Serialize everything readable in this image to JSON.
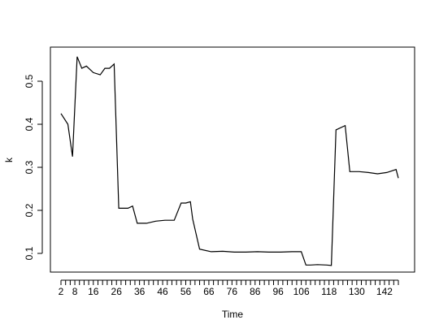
{
  "chart_data": {
    "type": "line",
    "title": "",
    "xlabel": "Time",
    "ylabel": "k",
    "xlim": [
      2,
      148
    ],
    "ylim": [
      0.055,
      0.575
    ],
    "x_ticks": [
      2,
      4,
      6,
      8,
      10,
      12,
      14,
      16,
      18,
      20,
      22,
      24,
      26,
      28,
      30,
      32,
      34,
      36,
      38,
      40,
      42,
      44,
      46,
      48,
      50,
      52,
      54,
      56,
      58,
      60,
      62,
      64,
      66,
      68,
      70,
      72,
      74,
      76,
      78,
      80,
      82,
      84,
      86,
      88,
      90,
      92,
      94,
      96,
      98,
      100,
      102,
      104,
      106,
      108,
      110,
      112,
      114,
      116,
      118,
      120,
      122,
      124,
      126,
      128,
      130,
      132,
      134,
      136,
      138,
      140,
      142,
      144,
      146,
      148
    ],
    "x_tick_labels": [
      {
        "x": 2,
        "label": "2"
      },
      {
        "x": 8,
        "label": "8"
      },
      {
        "x": 16,
        "label": "16"
      },
      {
        "x": 26,
        "label": "26"
      },
      {
        "x": 36,
        "label": "36"
      },
      {
        "x": 46,
        "label": "46"
      },
      {
        "x": 56,
        "label": "56"
      },
      {
        "x": 66,
        "label": "66"
      },
      {
        "x": 76,
        "label": "76"
      },
      {
        "x": 86,
        "label": "86"
      },
      {
        "x": 96,
        "label": "96"
      },
      {
        "x": 106,
        "label": "106"
      },
      {
        "x": 118,
        "label": "118"
      },
      {
        "x": 130,
        "label": "130"
      },
      {
        "x": 142,
        "label": "142"
      }
    ],
    "y_ticks": [
      {
        "value": 0.1,
        "label": "0.1"
      },
      {
        "value": 0.2,
        "label": "0.2"
      },
      {
        "value": 0.3,
        "label": "0.3"
      },
      {
        "value": 0.4,
        "label": "0.4"
      },
      {
        "value": 0.5,
        "label": "0.5"
      }
    ],
    "grid": false,
    "series": [
      {
        "x": [
          2,
          5,
          7,
          9,
          11,
          13,
          16,
          19,
          21,
          23,
          25,
          26,
          27,
          31,
          33,
          35,
          39,
          43,
          47,
          49,
          51,
          54,
          56,
          58,
          59,
          62,
          67,
          72,
          77,
          82,
          87,
          92,
          97,
          102,
          106,
          108,
          110,
          113,
          117,
          119,
          121,
          125,
          127,
          131,
          135,
          139,
          143,
          147,
          148
        ],
        "y": [
          0.425,
          0.4,
          0.325,
          0.557,
          0.53,
          0.535,
          0.52,
          0.515,
          0.53,
          0.53,
          0.54,
          0.375,
          0.205,
          0.205,
          0.21,
          0.17,
          0.17,
          0.175,
          0.177,
          0.177,
          0.177,
          0.217,
          0.217,
          0.22,
          0.18,
          0.11,
          0.104,
          0.105,
          0.103,
          0.103,
          0.104,
          0.103,
          0.103,
          0.104,
          0.104,
          0.073,
          0.073,
          0.074,
          0.073,
          0.072,
          0.387,
          0.397,
          0.29,
          0.29,
          0.288,
          0.285,
          0.288,
          0.295,
          0.275
        ]
      }
    ]
  }
}
